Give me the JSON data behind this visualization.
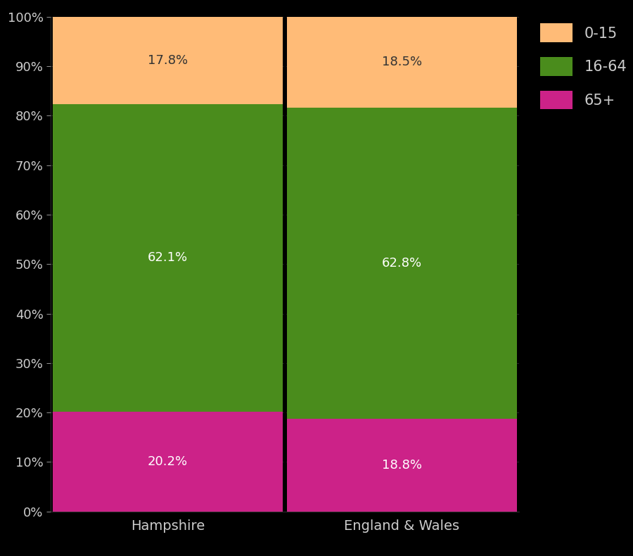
{
  "categories": [
    "Hampshire",
    "England & Wales"
  ],
  "segments": {
    "65+": [
      20.2,
      18.8
    ],
    "16-64": [
      62.1,
      62.8
    ],
    "0-15": [
      17.8,
      18.5
    ]
  },
  "colors": {
    "65+": "#cc2288",
    "16-64": "#4a8c1c",
    "0-15": "#ffbb77"
  },
  "label_colors": {
    "65+": "white",
    "16-64": "white",
    "0-15": "#333333"
  },
  "background_color": "#000000",
  "text_color": "#cccccc",
  "divider_color": "#000000",
  "ylim": [
    0,
    100
  ],
  "ytick_labels": [
    "0%",
    "10%",
    "20%",
    "30%",
    "40%",
    "50%",
    "60%",
    "70%",
    "80%",
    "90%",
    "100%"
  ],
  "ytick_values": [
    0,
    10,
    20,
    30,
    40,
    50,
    60,
    70,
    80,
    90,
    100
  ],
  "legend_order": [
    "0-15",
    "16-64",
    "65+"
  ],
  "bar_width": 0.98,
  "label_fontsize": 13,
  "tick_fontsize": 13,
  "xtick_fontsize": 14
}
